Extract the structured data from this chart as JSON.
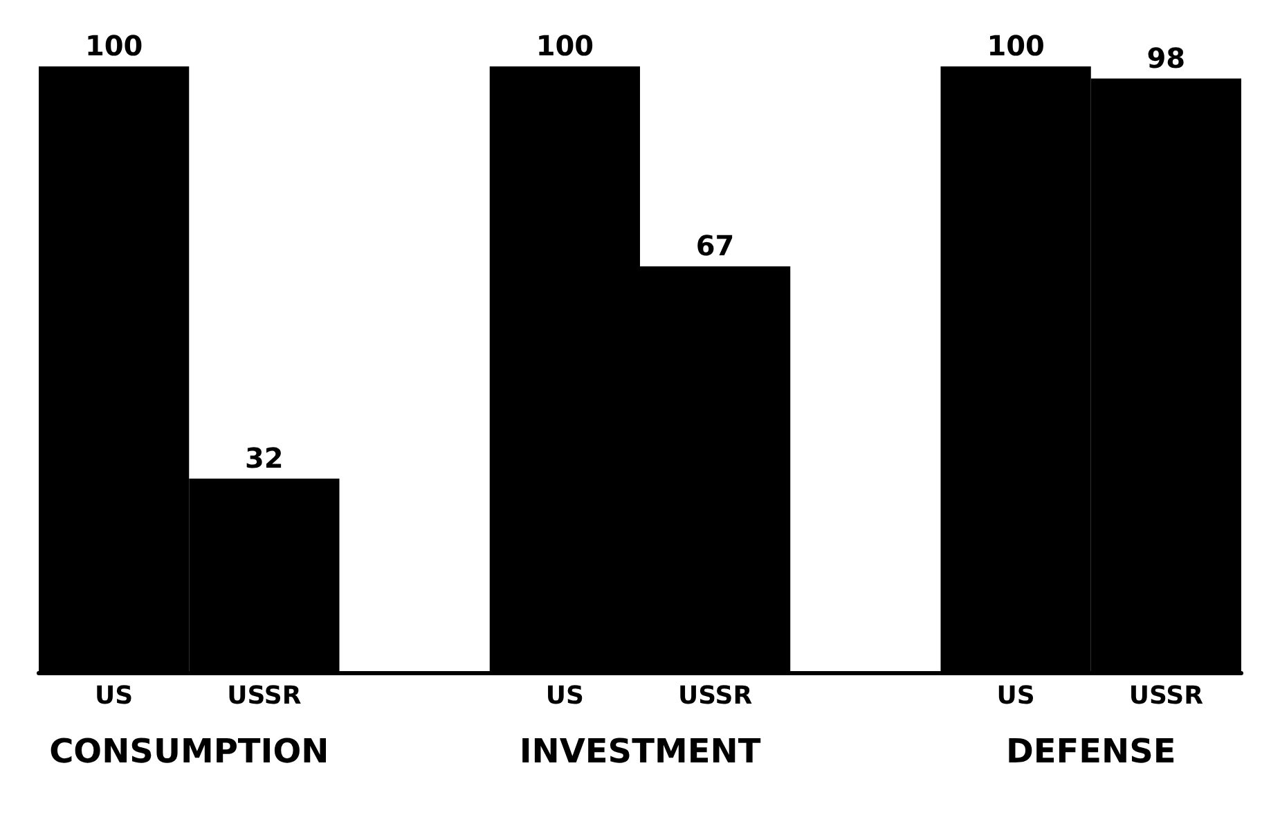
{
  "chart_data": {
    "type": "bar",
    "categories": [
      "US",
      "USSR",
      null,
      "US",
      "USSR",
      null,
      "US",
      "USSR"
    ],
    "values": [
      100,
      32,
      null,
      100,
      67,
      null,
      100,
      98
    ],
    "color": "#000000",
    "data_labels": true,
    "annotations": [
      "CONSUMPTION",
      "INVESTMENT",
      "DEFENSE"
    ]
  }
}
